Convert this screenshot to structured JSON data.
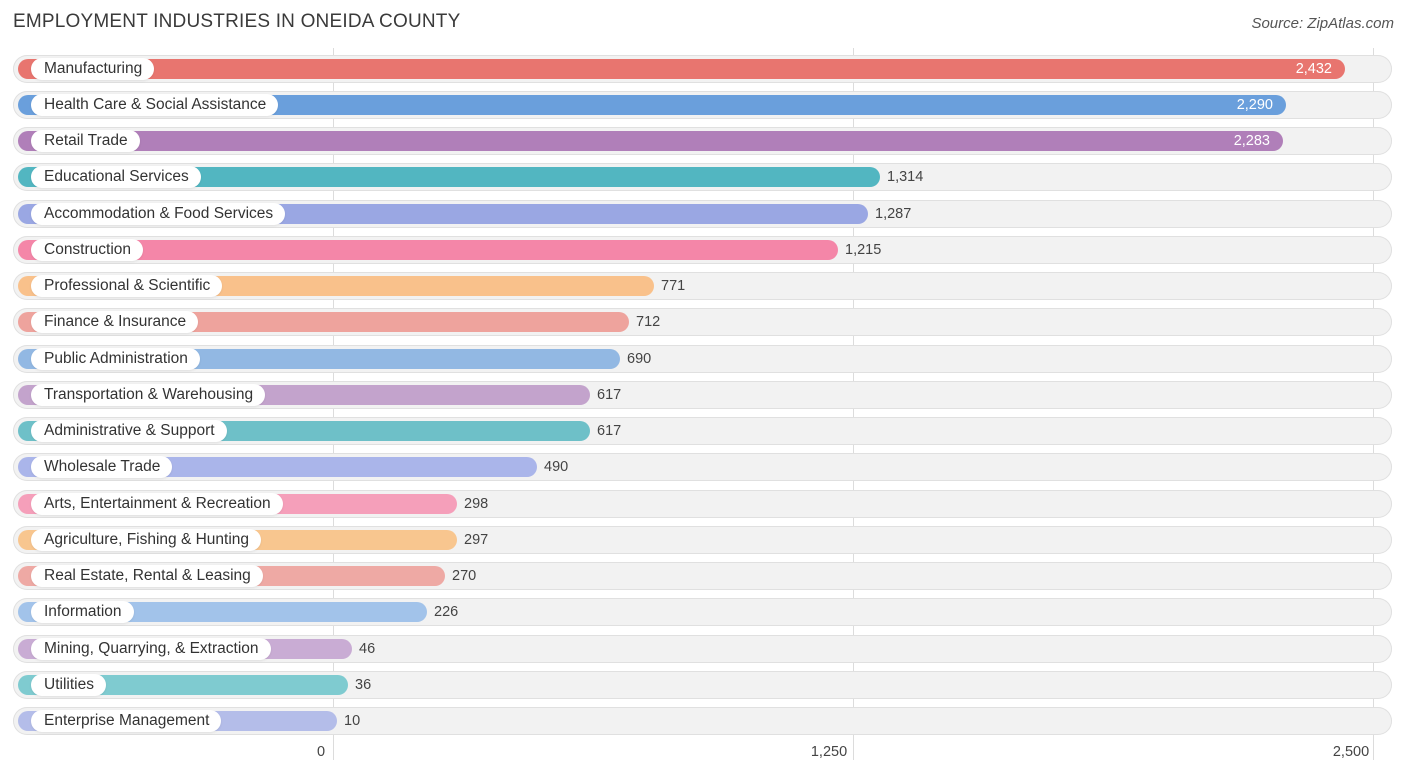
{
  "chart_data": {
    "type": "bar",
    "orientation": "horizontal",
    "title": "EMPLOYMENT INDUSTRIES IN ONEIDA COUNTY",
    "source": "Source: ZipAtlas.com",
    "xlim": [
      0,
      2500
    ],
    "ticks": [
      {
        "value": 0,
        "label": "0"
      },
      {
        "value": 1250,
        "label": "1,250"
      },
      {
        "value": 2500,
        "label": "2,500"
      }
    ],
    "categories": [
      "Manufacturing",
      "Health Care & Social Assistance",
      "Retail Trade",
      "Educational Services",
      "Accommodation & Food Services",
      "Construction",
      "Professional & Scientific",
      "Finance & Insurance",
      "Public Administration",
      "Transportation & Warehousing",
      "Administrative & Support",
      "Wholesale Trade",
      "Arts, Entertainment & Recreation",
      "Agriculture, Fishing & Hunting",
      "Real Estate, Rental & Leasing",
      "Information",
      "Mining, Quarrying, & Extraction",
      "Utilities",
      "Enterprise Management"
    ],
    "values": [
      2432,
      2290,
      2283,
      1314,
      1287,
      1215,
      771,
      712,
      690,
      617,
      617,
      490,
      298,
      297,
      270,
      226,
      46,
      36,
      10
    ],
    "value_labels": [
      "2,432",
      "2,290",
      "2,283",
      "1,314",
      "1,287",
      "1,215",
      "771",
      "712",
      "690",
      "617",
      "617",
      "490",
      "298",
      "297",
      "270",
      "226",
      "46",
      "36",
      "10"
    ],
    "colors": [
      "#e8756f",
      "#6a9fdc",
      "#b07fb9",
      "#52b6c1",
      "#9aa7e3",
      "#f486a8",
      "#f9c18b",
      "#eea39d",
      "#92b8e3",
      "#c3a3cc",
      "#6ec0c8",
      "#aab5ea",
      "#f59fba",
      "#f8c68f",
      "#eea9a4",
      "#a2c3ea",
      "#c9acd4",
      "#7fcbd0",
      "#b4bde9"
    ]
  }
}
